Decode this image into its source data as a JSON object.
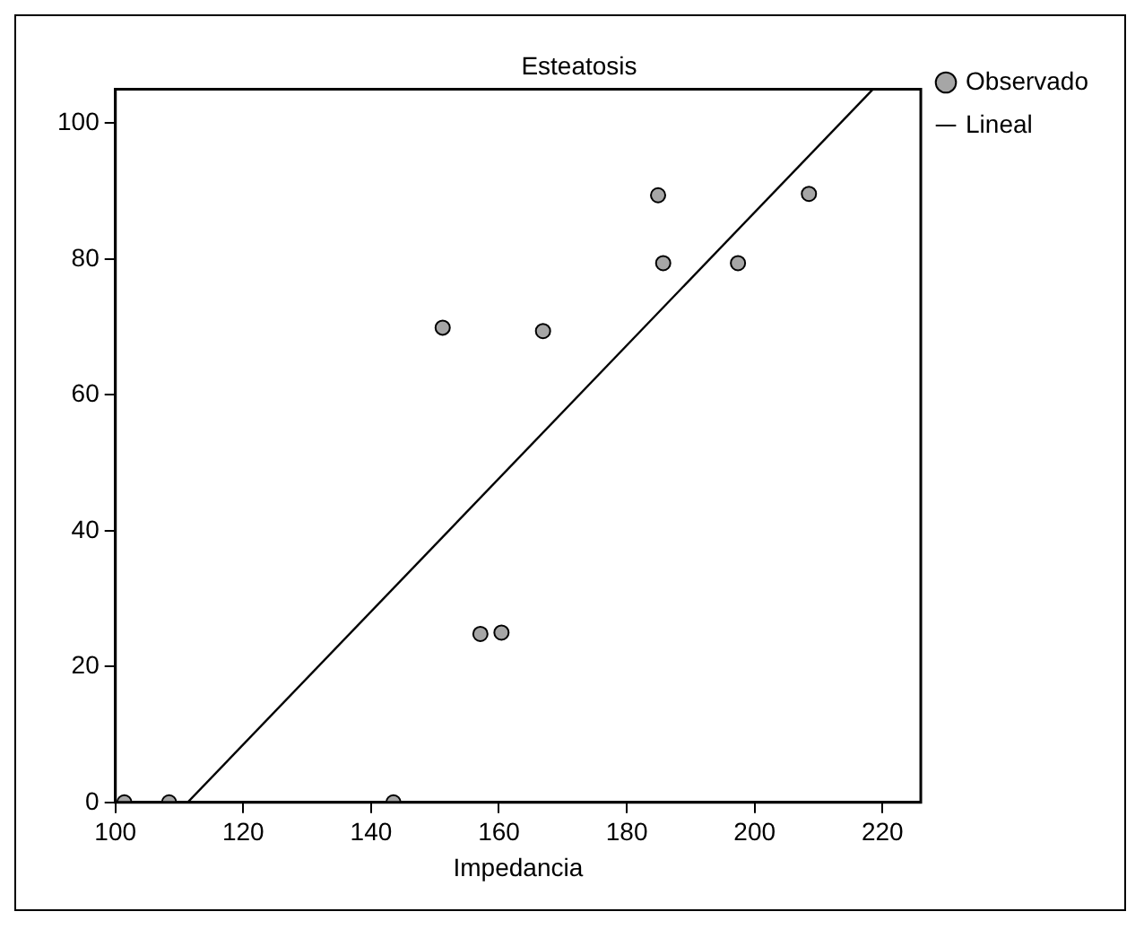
{
  "chart_data": {
    "type": "scatter",
    "title": "Esteatosis",
    "xlabel": "Impedancia",
    "xlim": [
      100,
      226
    ],
    "ylim": [
      0,
      105
    ],
    "xticks": [
      100,
      120,
      140,
      160,
      180,
      200,
      220
    ],
    "yticks": [
      0,
      20,
      40,
      60,
      80,
      100
    ],
    "grid": false,
    "legend": "top right",
    "marker": "circle",
    "series": [
      {
        "name": "Observado",
        "color": "#a6a6a6",
        "x": [
          101.4,
          108.4,
          143.5,
          157.1,
          160.4,
          151.2,
          166.9,
          184.9,
          185.7,
          197.4,
          208.5
        ],
        "values": [
          0,
          0,
          0,
          24.8,
          25,
          69.9,
          69.4,
          89.4,
          79.4,
          79.4,
          89.6
        ]
      },
      {
        "name": "Lineal",
        "type": "line",
        "color": "#000000",
        "line_style": "solid",
        "marker": "none",
        "x": [
          111.3,
          218.5
        ],
        "values": [
          0,
          105
        ]
      }
    ]
  }
}
